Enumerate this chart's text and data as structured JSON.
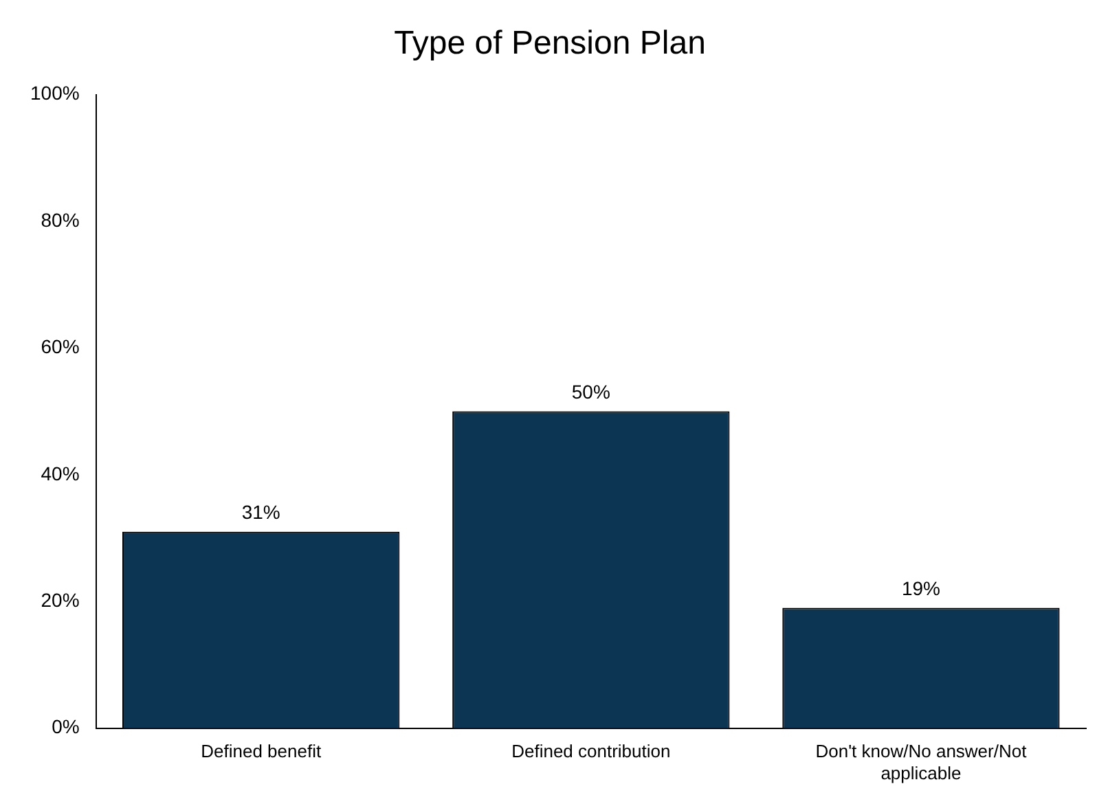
{
  "chart_data": {
    "type": "bar",
    "title": "Type of Pension Plan",
    "categories": [
      "Defined benefit",
      "Defined contribution",
      "Don't know/No answer/Not applicable"
    ],
    "values": [
      31,
      50,
      19
    ],
    "value_labels": [
      "31%",
      "50%",
      "19%"
    ],
    "color": "#0b3552",
    "ylim": [
      0,
      100
    ],
    "yticks": [
      {
        "value": 0,
        "label": "0%"
      },
      {
        "value": 20,
        "label": "20%"
      },
      {
        "value": 40,
        "label": "40%"
      },
      {
        "value": 60,
        "label": "60%"
      },
      {
        "value": 80,
        "label": "80%"
      },
      {
        "value": 100,
        "label": "100%"
      }
    ],
    "grid": false,
    "legend": false
  }
}
